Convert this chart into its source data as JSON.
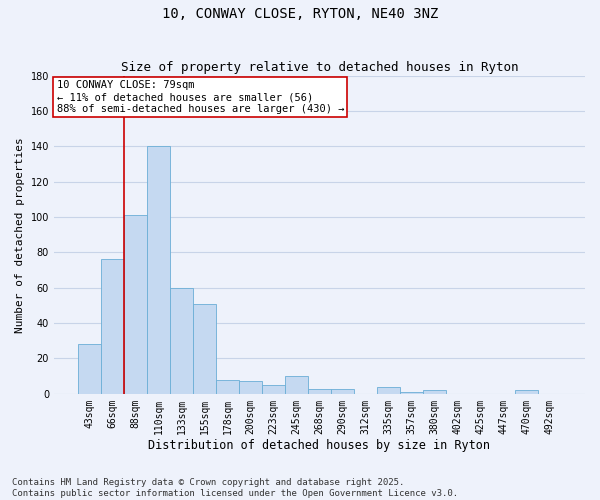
{
  "title": "10, CONWAY CLOSE, RYTON, NE40 3NZ",
  "subtitle": "Size of property relative to detached houses in Ryton",
  "xlabel": "Distribution of detached houses by size in Ryton",
  "ylabel": "Number of detached properties",
  "categories": [
    "43sqm",
    "66sqm",
    "88sqm",
    "110sqm",
    "133sqm",
    "155sqm",
    "178sqm",
    "200sqm",
    "223sqm",
    "245sqm",
    "268sqm",
    "290sqm",
    "312sqm",
    "335sqm",
    "357sqm",
    "380sqm",
    "402sqm",
    "425sqm",
    "447sqm",
    "470sqm",
    "492sqm"
  ],
  "values": [
    28,
    76,
    101,
    140,
    60,
    51,
    8,
    7,
    5,
    10,
    3,
    3,
    0,
    4,
    1,
    2,
    0,
    0,
    0,
    2,
    0
  ],
  "bar_color": "#c5d9f1",
  "bar_edge_color": "#6baed6",
  "vline_x_idx": 1.5,
  "vline_color": "#cc0000",
  "annotation_text": "10 CONWAY CLOSE: 79sqm\n← 11% of detached houses are smaller (56)\n88% of semi-detached houses are larger (430) →",
  "annotation_box_color": "white",
  "annotation_box_edge_color": "#cc0000",
  "ylim": [
    0,
    180
  ],
  "yticks": [
    0,
    20,
    40,
    60,
    80,
    100,
    120,
    140,
    160,
    180
  ],
  "background_color": "#eef2fb",
  "grid_color": "#c8d4e8",
  "footer": "Contains HM Land Registry data © Crown copyright and database right 2025.\nContains public sector information licensed under the Open Government Licence v3.0.",
  "title_fontsize": 10,
  "subtitle_fontsize": 9,
  "xlabel_fontsize": 8.5,
  "ylabel_fontsize": 8,
  "tick_fontsize": 7,
  "annotation_fontsize": 7.5,
  "footer_fontsize": 6.5
}
